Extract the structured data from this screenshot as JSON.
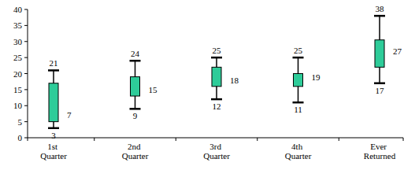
{
  "chart_data": {
    "type": "box",
    "categories": [
      "1st Quarter",
      "2nd Quarter",
      "3rd Quarter",
      "4th Quarter",
      "Ever Returned"
    ],
    "max": [
      21,
      24,
      25,
      25,
      38
    ],
    "q3": [
      17,
      19,
      22,
      20,
      30.5
    ],
    "median": [
      7,
      15,
      18,
      19,
      27
    ],
    "q1": [
      5,
      13,
      16,
      16,
      22
    ],
    "min": [
      3,
      9,
      12,
      11,
      17
    ],
    "color": "#2ecc99",
    "data_labels": true,
    "ylim": [
      0,
      40
    ],
    "yticks": [
      0,
      5,
      10,
      15,
      20,
      25,
      30,
      35,
      40
    ],
    "grid": false
  }
}
